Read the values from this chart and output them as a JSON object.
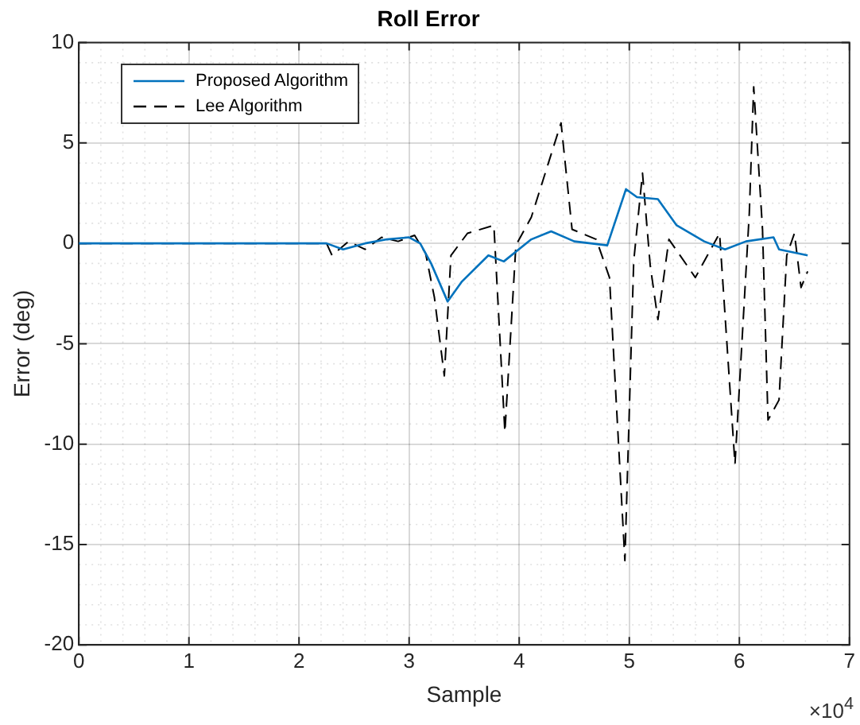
{
  "chart_data": {
    "type": "line",
    "title": "Roll Error",
    "xlabel": "Sample",
    "ylabel": "Error (deg)",
    "annotations": [
      "×10$^{4}$"
    ],
    "xlim": [
      0,
      7
    ],
    "xticks": [
      0,
      1,
      2,
      3,
      4,
      5,
      6,
      7
    ],
    "ylim": [
      -20,
      10
    ],
    "yticks": [
      -20,
      -15,
      -10,
      -5,
      0,
      5,
      10
    ],
    "grid": true,
    "legend": "top left",
    "marker": "none",
    "series": [
      {
        "name": "Proposed Algorithm",
        "color": "#0072bd",
        "line_style": "solid",
        "x": [
          0,
          2.25,
          2.4,
          2.6,
          2.8,
          3.0,
          3.1,
          3.2,
          3.35,
          3.48,
          3.72,
          3.86,
          4.11,
          4.29,
          4.5,
          4.8,
          4.97,
          5.07,
          5.26,
          5.43,
          5.68,
          5.87,
          6.06,
          6.31,
          6.36,
          6.62
        ],
        "values": [
          0,
          0,
          -0.3,
          0,
          0.2,
          0.3,
          0,
          -1,
          -2.9,
          -1.9,
          -0.6,
          -0.9,
          0.2,
          0.6,
          0.1,
          -0.1,
          2.7,
          2.3,
          2.2,
          0.9,
          0.1,
          -0.3,
          0.1,
          0.3,
          -0.3,
          -0.6
        ]
      },
      {
        "name": "Lee Algorithm",
        "color": "#000000",
        "line_style": "dashed",
        "x": [
          0,
          2.25,
          2.3,
          2.45,
          2.6,
          2.75,
          2.9,
          3.05,
          3.15,
          3.23,
          3.32,
          3.38,
          3.53,
          3.77,
          3.87,
          3.97,
          4.11,
          4.38,
          4.48,
          4.7,
          4.82,
          4.96,
          5.04,
          5.12,
          5.19,
          5.26,
          5.36,
          5.6,
          5.82,
          5.96,
          6.09,
          6.13,
          6.21,
          6.26,
          6.36,
          6.43,
          6.5,
          6.56,
          6.62
        ],
        "values": [
          0,
          0,
          -0.6,
          0.1,
          -0.3,
          0.3,
          0.1,
          0.4,
          -0.5,
          -2.7,
          -6.6,
          -0.6,
          0.5,
          0.9,
          -9.4,
          -0.1,
          1.3,
          6,
          0.7,
          0.2,
          -1.7,
          -15.8,
          -0.9,
          3.5,
          -1.1,
          -3.8,
          0.2,
          -1.7,
          0.5,
          -11,
          1.5,
          7.8,
          0.7,
          -8.8,
          -7.8,
          -0.6,
          0.5,
          -2.2,
          -1.4
        ]
      }
    ]
  }
}
